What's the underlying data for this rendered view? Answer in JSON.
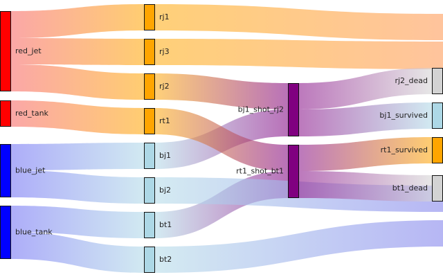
{
  "colors": {
    "red": "#ff0000",
    "blue": "#0000ff",
    "orange": "#ffa500",
    "lightblue": "#add8e6",
    "purple": "#800080",
    "gray": "#d3d3d3",
    "red_flow_start": "#f87171",
    "blue_flow_start": "#7b7bf5"
  },
  "nodes": [
    {
      "id": "red_jet",
      "label": "red_jet",
      "color": "#ff0000",
      "column": 0
    },
    {
      "id": "red_tank",
      "label": "red_tank",
      "color": "#ff0000",
      "column": 0
    },
    {
      "id": "blue_jet",
      "label": "blue_jet",
      "color": "#0000ff",
      "column": 0
    },
    {
      "id": "blue_tank",
      "label": "blue_tank",
      "color": "#0000ff",
      "column": 0
    },
    {
      "id": "rj1",
      "label": "rj1",
      "color": "#ffa500",
      "column": 1
    },
    {
      "id": "rj3",
      "label": "rj3",
      "color": "#ffa500",
      "column": 1
    },
    {
      "id": "rj2",
      "label": "rj2",
      "color": "#ffa500",
      "column": 1
    },
    {
      "id": "rt1",
      "label": "rt1",
      "color": "#ffa500",
      "column": 1
    },
    {
      "id": "bj1",
      "label": "bj1",
      "color": "#add8e6",
      "column": 1
    },
    {
      "id": "bj2",
      "label": "bj2",
      "color": "#add8e6",
      "column": 1
    },
    {
      "id": "bt1",
      "label": "bt1",
      "color": "#add8e6",
      "column": 1
    },
    {
      "id": "bt2",
      "label": "bt2",
      "color": "#add8e6",
      "column": 1
    },
    {
      "id": "bj1_shot_rj2",
      "label": "bj1_shot_rj2",
      "color": "#800080",
      "column": 2
    },
    {
      "id": "rt1_shot_bt1",
      "label": "rt1_shot_bt1",
      "color": "#800080",
      "column": 2
    },
    {
      "id": "rj2_dead",
      "label": "rj2_dead",
      "color": "#d3d3d3",
      "column": 3
    },
    {
      "id": "bj1_survived",
      "label": "bj1_survived",
      "color": "#add8e6",
      "column": 3
    },
    {
      "id": "rt1_survived",
      "label": "rt1_survived",
      "color": "#ffa500",
      "column": 3
    },
    {
      "id": "bt1_dead",
      "label": "bt1_dead",
      "color": "#d3d3d3",
      "column": 3
    }
  ],
  "links": [
    {
      "source": "red_jet",
      "target": "rj1",
      "value": 1
    },
    {
      "source": "red_jet",
      "target": "rj3",
      "value": 1
    },
    {
      "source": "red_jet",
      "target": "rj2",
      "value": 1
    },
    {
      "source": "red_tank",
      "target": "rt1",
      "value": 1
    },
    {
      "source": "blue_jet",
      "target": "bj1",
      "value": 1
    },
    {
      "source": "blue_jet",
      "target": "bj2",
      "value": 1
    },
    {
      "source": "blue_tank",
      "target": "bt1",
      "value": 1
    },
    {
      "source": "blue_tank",
      "target": "bt2",
      "value": 1
    },
    {
      "source": "rj1",
      "target": "offscreen",
      "value": 1
    },
    {
      "source": "rj3",
      "target": "offscreen",
      "value": 1
    },
    {
      "source": "rj2",
      "target": "bj1_shot_rj2",
      "value": 1
    },
    {
      "source": "bj1",
      "target": "bj1_shot_rj2",
      "value": 1
    },
    {
      "source": "rt1",
      "target": "rt1_shot_bt1",
      "value": 1
    },
    {
      "source": "bt1",
      "target": "rt1_shot_bt1",
      "value": 1
    },
    {
      "source": "bj2",
      "target": "offscreen",
      "value": 1
    },
    {
      "source": "bt2",
      "target": "offscreen",
      "value": 1
    },
    {
      "source": "bj1_shot_rj2",
      "target": "rj2_dead",
      "value": 1
    },
    {
      "source": "bj1_shot_rj2",
      "target": "bj1_survived",
      "value": 1
    },
    {
      "source": "rt1_shot_bt1",
      "target": "rt1_survived",
      "value": 1
    },
    {
      "source": "rt1_shot_bt1",
      "target": "bt1_dead",
      "value": 1
    }
  ]
}
